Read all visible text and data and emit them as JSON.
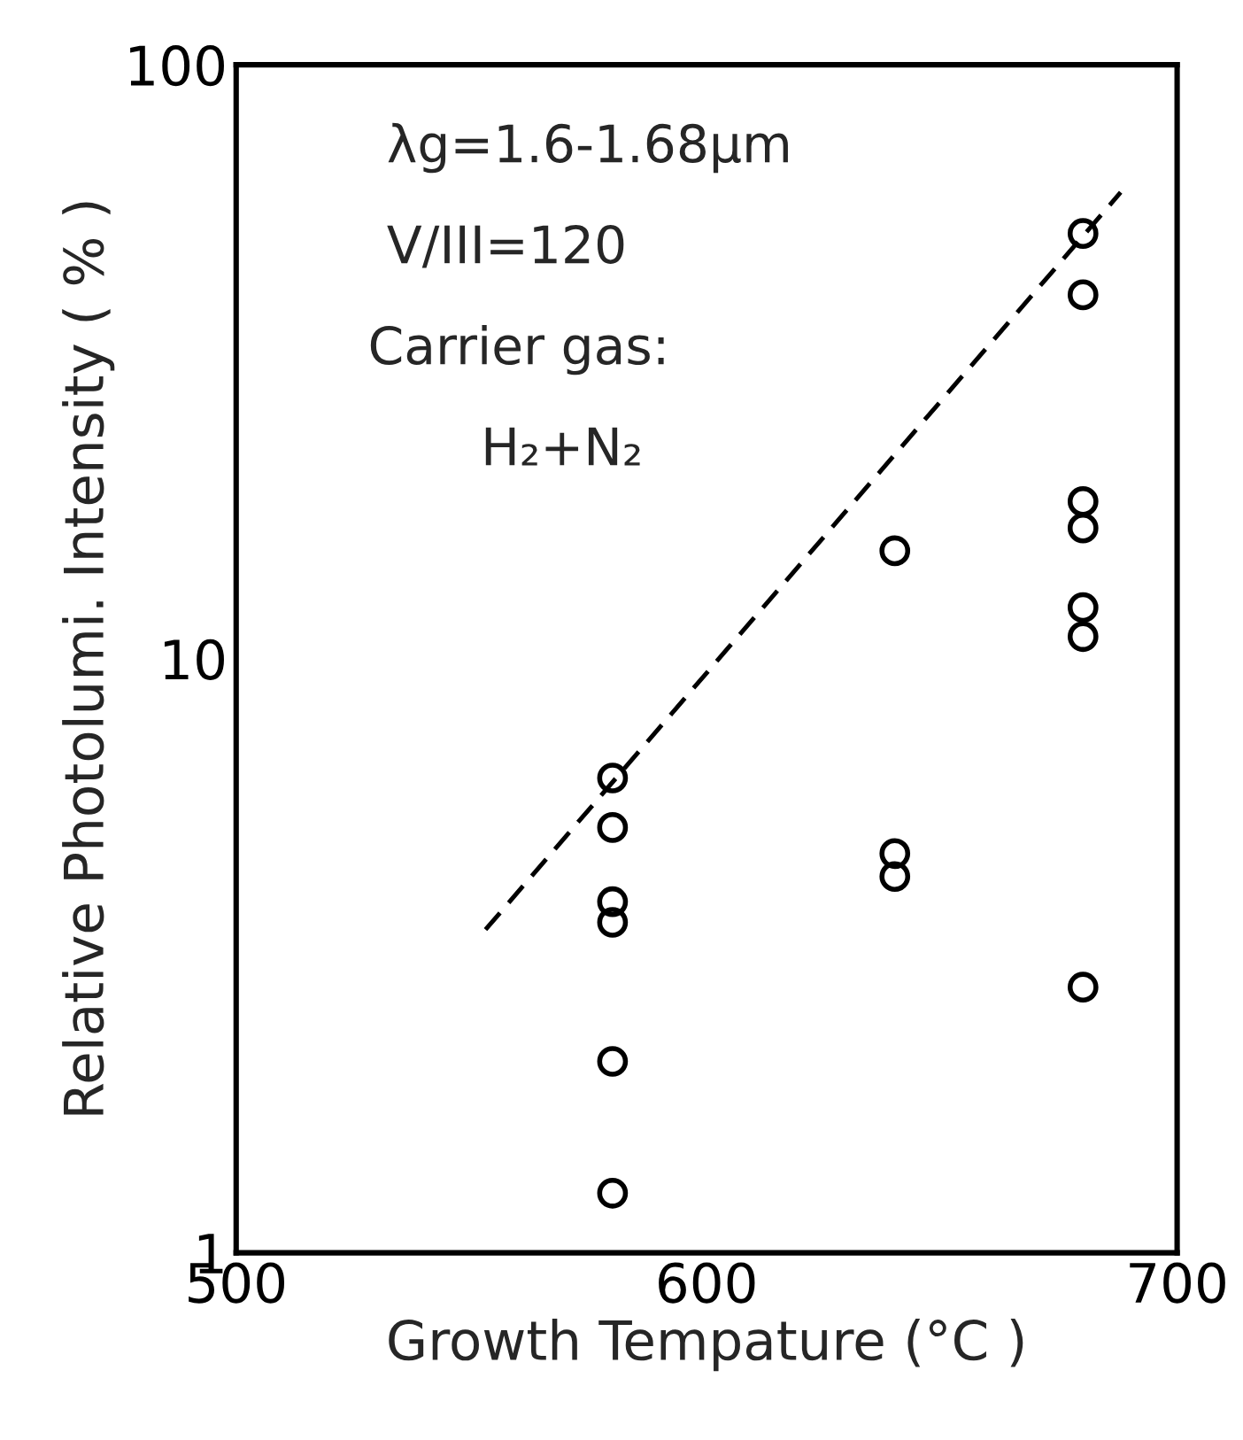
{
  "chart_data": {
    "type": "scatter",
    "xlabel": "Growth Tempature (°C )",
    "ylabel": "Relative Photolumi. Intensity ( % )",
    "series": [
      {
        "color": "#000000",
        "marker": "circle",
        "x": [
          580,
          580,
          580,
          580,
          580,
          580,
          640,
          640,
          640,
          680,
          680,
          680,
          680,
          680,
          680,
          680
        ],
        "values": [
          6.3,
          5.2,
          3.9,
          3.6,
          2.1,
          1.26,
          15.2,
          4.7,
          4.3,
          52,
          41,
          18.4,
          16.6,
          12.2,
          10.9,
          2.8
        ]
      },
      {
        "type": "line",
        "color": "#000000",
        "line_style": "dashed",
        "marker": "none",
        "x": [
          553,
          688
        ],
        "values": [
          3.5,
          61
        ]
      }
    ],
    "annotations": [
      "λg=1.6-1.68μm",
      "V/III=120",
      "Carrier gas:",
      "H₂+N₂"
    ],
    "log": "y",
    "xlim": [
      500,
      700
    ],
    "ylim": [
      1,
      100
    ],
    "xticks": [
      500,
      600,
      700
    ],
    "yticks": [
      1,
      10,
      100
    ],
    "grid": false,
    "legend": false
  }
}
